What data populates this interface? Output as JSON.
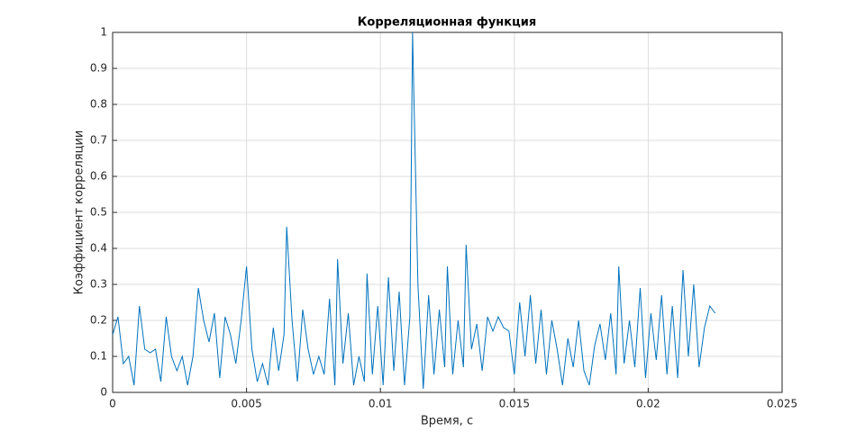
{
  "chart_data": {
    "type": "line",
    "title": "Корреляционная функция",
    "xlabel": "Время, с",
    "ylabel": "Коэффициент корреляции",
    "x": [
      0,
      0.0002,
      0.0004,
      0.0006,
      0.0008,
      0.001,
      0.0012,
      0.0014,
      0.0016,
      0.0018,
      0.002,
      0.0022,
      0.0024,
      0.0026,
      0.0028,
      0.003,
      0.0032,
      0.0034,
      0.0036,
      0.0038,
      0.004,
      0.0042,
      0.0044,
      0.0046,
      0.0048,
      0.005,
      0.0052,
      0.0054,
      0.0056,
      0.0058,
      0.006,
      0.0062,
      0.0064,
      0.0065,
      0.0067,
      0.0069,
      0.0071,
      0.0073,
      0.0075,
      0.0077,
      0.0079,
      0.0081,
      0.0083,
      0.0084,
      0.0086,
      0.0088,
      0.009,
      0.0092,
      0.0094,
      0.0095,
      0.0097,
      0.0099,
      0.0101,
      0.0103,
      0.0105,
      0.0107,
      0.0109,
      0.0111,
      0.0112,
      0.0114,
      0.0116,
      0.0118,
      0.012,
      0.0122,
      0.0124,
      0.0125,
      0.0127,
      0.0129,
      0.0131,
      0.0132,
      0.0134,
      0.0136,
      0.0138,
      0.014,
      0.0142,
      0.0144,
      0.0146,
      0.0148,
      0.015,
      0.0152,
      0.0154,
      0.0156,
      0.0158,
      0.016,
      0.0162,
      0.0164,
      0.0166,
      0.0168,
      0.017,
      0.0172,
      0.0174,
      0.0176,
      0.0178,
      0.018,
      0.0182,
      0.0184,
      0.0186,
      0.0188,
      0.0189,
      0.0191,
      0.0193,
      0.0195,
      0.0197,
      0.0199,
      0.0201,
      0.0203,
      0.0205,
      0.0207,
      0.0209,
      0.0211,
      0.0213,
      0.0215,
      0.0217,
      0.0219,
      0.0221,
      0.0223,
      0.0225
    ],
    "series": [
      {
        "color": "#0072bd",
        "values": [
          0.16,
          0.21,
          0.08,
          0.1,
          0.02,
          0.24,
          0.12,
          0.11,
          0.12,
          0.03,
          0.21,
          0.1,
          0.06,
          0.1,
          0.02,
          0.1,
          0.29,
          0.2,
          0.14,
          0.22,
          0.04,
          0.21,
          0.16,
          0.08,
          0.2,
          0.35,
          0.12,
          0.03,
          0.08,
          0.02,
          0.18,
          0.06,
          0.16,
          0.46,
          0.2,
          0.03,
          0.23,
          0.12,
          0.05,
          0.1,
          0.05,
          0.26,
          0.02,
          0.37,
          0.08,
          0.22,
          0.02,
          0.1,
          0.03,
          0.33,
          0.05,
          0.24,
          0.02,
          0.32,
          0.06,
          0.28,
          0.02,
          0.21,
          1.0,
          0.3,
          0.01,
          0.27,
          0.05,
          0.23,
          0.07,
          0.35,
          0.05,
          0.2,
          0.07,
          0.41,
          0.12,
          0.19,
          0.06,
          0.21,
          0.17,
          0.21,
          0.18,
          0.17,
          0.05,
          0.25,
          0.1,
          0.27,
          0.08,
          0.23,
          0.05,
          0.2,
          0.12,
          0.02,
          0.15,
          0.07,
          0.2,
          0.06,
          0.02,
          0.13,
          0.19,
          0.09,
          0.22,
          0.05,
          0.35,
          0.08,
          0.2,
          0.07,
          0.29,
          0.04,
          0.22,
          0.09,
          0.27,
          0.05,
          0.24,
          0.04,
          0.34,
          0.1,
          0.3,
          0.07,
          0.18,
          0.24,
          0.22
        ]
      }
    ],
    "xlim": [
      0,
      0.025
    ],
    "xticks": [
      0,
      0.005,
      0.01,
      0.015,
      0.02,
      0.025
    ],
    "ylim": [
      0,
      1
    ],
    "yticks": [
      0,
      0.1,
      0.2,
      0.3,
      0.4,
      0.5,
      0.6,
      0.7,
      0.8,
      0.9,
      1
    ],
    "grid": true
  }
}
